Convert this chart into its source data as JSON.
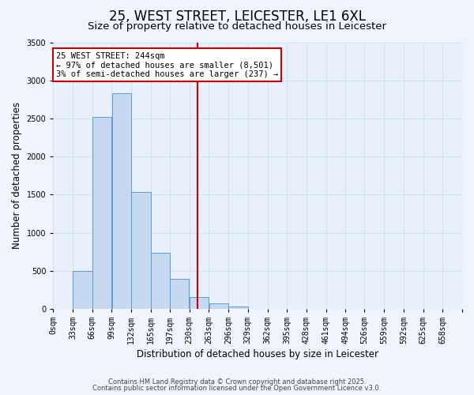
{
  "title": "25, WEST STREET, LEICESTER, LE1 6XL",
  "subtitle": "Size of property relative to detached houses in Leicester",
  "xlabel": "Distribution of detached houses by size in Leicester",
  "ylabel": "Number of detached properties",
  "bin_labels": [
    "0sqm",
    "33sqm",
    "66sqm",
    "99sqm",
    "132sqm",
    "165sqm",
    "197sqm",
    "230sqm",
    "263sqm",
    "296sqm",
    "329sqm",
    "362sqm",
    "395sqm",
    "428sqm",
    "461sqm",
    "494sqm",
    "526sqm",
    "559sqm",
    "592sqm",
    "625sqm",
    "658sqm"
  ],
  "bin_edges": [
    0,
    33,
    66,
    99,
    132,
    165,
    197,
    230,
    263,
    296,
    329,
    362,
    395,
    428,
    461,
    494,
    526,
    559,
    592,
    625,
    658
  ],
  "bar_heights": [
    0,
    500,
    2520,
    2840,
    1540,
    740,
    390,
    150,
    70,
    30,
    0,
    0,
    0,
    0,
    0,
    0,
    0,
    0,
    0,
    0
  ],
  "bar_color": "#c6d9f0",
  "bar_edge_color": "#5b9bd5",
  "vline_x": 244,
  "ylim": [
    0,
    3500
  ],
  "yticks": [
    0,
    500,
    1000,
    1500,
    2000,
    2500,
    3000,
    3500
  ],
  "grid_color": "#d0e4f7",
  "bg_color": "#e8f0fb",
  "fig_bg_color": "#f0f5fd",
  "annotation_title": "25 WEST STREET: 244sqm",
  "annotation_line1": "← 97% of detached houses are smaller (8,501)",
  "annotation_line2": "3% of semi-detached houses are larger (237) →",
  "annotation_box_color": "#ffffff",
  "annotation_box_edge": "#cc0000",
  "vline_color": "#cc0000",
  "footer1": "Contains HM Land Registry data © Crown copyright and database right 2025.",
  "footer2": "Contains public sector information licensed under the Open Government Licence v3.0.",
  "title_fontsize": 12,
  "subtitle_fontsize": 9.5,
  "tick_fontsize": 7,
  "ylabel_fontsize": 8.5,
  "xlabel_fontsize": 8.5,
  "annot_fontsize": 7.5,
  "footer_fontsize": 6
}
